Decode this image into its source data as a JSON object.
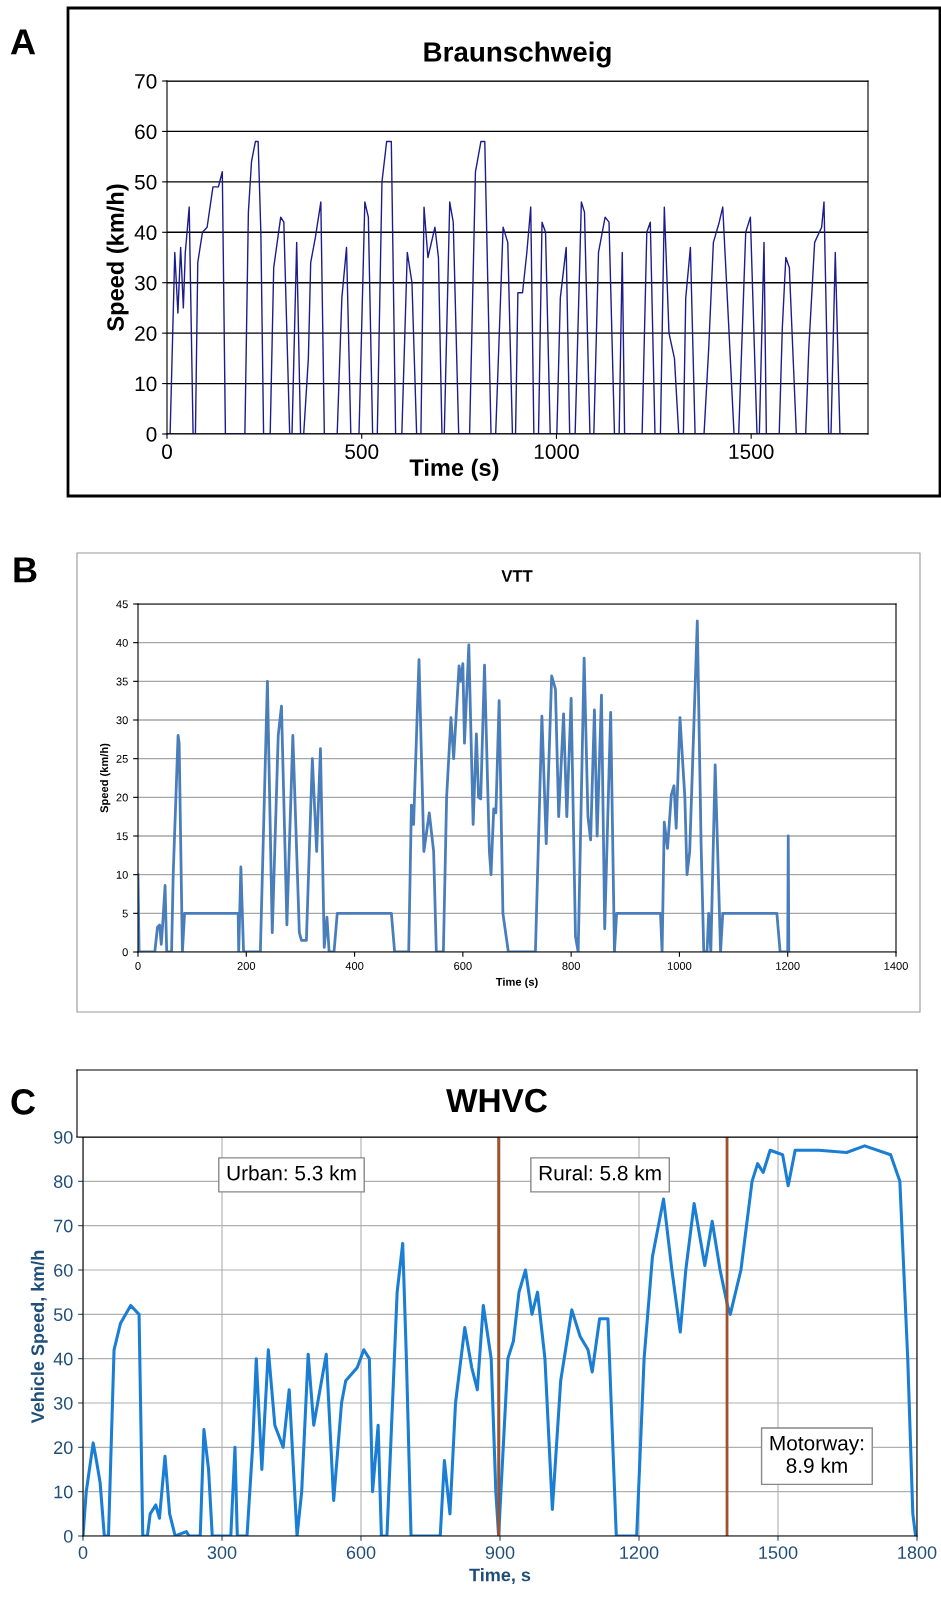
{
  "chart_data": [
    {
      "type": "line",
      "title": "Braunschweig",
      "xlabel": "Time (s)",
      "ylabel": "Speed (km/h)",
      "annotations": [
        "A"
      ],
      "xlim": [
        0,
        1800
      ],
      "xticks": [
        0,
        500,
        1000,
        1500
      ],
      "ylim": [
        0,
        70
      ],
      "yticks": [
        0,
        10,
        20,
        30,
        40,
        50,
        60,
        70
      ],
      "grid": "y",
      "legend": false,
      "x": [
        0,
        8,
        20,
        28,
        35,
        42,
        47,
        57,
        67,
        73,
        79,
        91,
        103,
        118,
        132,
        142,
        150,
        200,
        209,
        217,
        227,
        234,
        241,
        248,
        265,
        274,
        292,
        300,
        315,
        321,
        333,
        343,
        351,
        363,
        369,
        381,
        395,
        404,
        437,
        449,
        461,
        472,
        493,
        508,
        517,
        528,
        540,
        552,
        564,
        576,
        587,
        603,
        617,
        629,
        641,
        652,
        660,
        670,
        688,
        697,
        706,
        712,
        726,
        735,
        749,
        777,
        792,
        806,
        816,
        832,
        844,
        863,
        875,
        887,
        895,
        901,
        913,
        924,
        934,
        942,
        954,
        963,
        972,
        984,
        1001,
        1010,
        1025,
        1034,
        1048,
        1064,
        1072,
        1086,
        1096,
        1108,
        1125,
        1135,
        1149,
        1161,
        1169,
        1175,
        1220,
        1232,
        1241,
        1253,
        1267,
        1277,
        1289,
        1303,
        1314,
        1326,
        1332,
        1344,
        1356,
        1379,
        1391,
        1403,
        1418,
        1427,
        1442,
        1456,
        1468,
        1486,
        1498,
        1515,
        1521,
        1533,
        1539,
        1572,
        1580,
        1589,
        1598,
        1616,
        1640,
        1648,
        1663,
        1681,
        1687,
        1699,
        1705,
        1716,
        1728,
        1740
      ],
      "series": [
        {
          "color": "#1c1c8c",
          "values": [
            0,
            0,
            36,
            24,
            37,
            25,
            36,
            45,
            0,
            0,
            34,
            40,
            41,
            49,
            49,
            52,
            0,
            0,
            44,
            54,
            58,
            58,
            40,
            0,
            0,
            33,
            43,
            42,
            0,
            0,
            38,
            0,
            0,
            15,
            34,
            39,
            46,
            0,
            0,
            27,
            37,
            0,
            0,
            46,
            43,
            0,
            0,
            50,
            58,
            58,
            0,
            0,
            36,
            30,
            0,
            0,
            45,
            35,
            41,
            35,
            0,
            0,
            46,
            42,
            0,
            0,
            52,
            58,
            58,
            0,
            0,
            41,
            38,
            0,
            0,
            28,
            28,
            36,
            45,
            0,
            0,
            42,
            40,
            0,
            0,
            27,
            37,
            0,
            0,
            46,
            44,
            0,
            0,
            36,
            43,
            42,
            0,
            0,
            36,
            0,
            0,
            40,
            42,
            0,
            0,
            45,
            20,
            15,
            0,
            0,
            27,
            37,
            0,
            0,
            17,
            38,
            42,
            45,
            22,
            0,
            0,
            40,
            43,
            0,
            0,
            38,
            0,
            0,
            21,
            35,
            33,
            0,
            0,
            17,
            38,
            41,
            46,
            0,
            0,
            36,
            0,
            0
          ]
        }
      ]
    },
    {
      "type": "line",
      "title": "VTT",
      "xlabel": "Time (s)",
      "ylabel": "Speed (km/h)",
      "annotations": [
        "B"
      ],
      "xlim": [
        0,
        1400
      ],
      "xticks": [
        0,
        200,
        400,
        600,
        800,
        1000,
        1200,
        1400
      ],
      "ylim": [
        0,
        45
      ],
      "yticks": [
        0,
        5,
        10,
        15,
        20,
        25,
        30,
        35,
        40,
        45
      ],
      "grid": "y",
      "legend": false,
      "x": [
        0,
        2,
        31,
        36,
        40,
        43,
        46,
        50,
        53,
        62,
        65,
        70,
        74,
        76,
        82,
        86,
        185,
        186,
        190,
        195,
        226,
        239,
        248,
        259,
        265,
        275,
        286,
        298,
        302,
        311,
        322,
        330,
        337,
        344,
        349,
        353,
        362,
        368,
        468,
        474,
        500,
        505,
        509,
        519,
        528,
        538,
        546,
        551,
        564,
        570,
        578,
        583,
        593,
        596,
        600,
        603,
        611,
        619,
        625,
        629,
        633,
        640,
        649,
        652,
        657,
        661,
        667,
        674,
        684,
        734,
        746,
        754,
        764,
        771,
        777,
        786,
        792,
        800,
        808,
        813,
        824,
        831,
        836,
        843,
        848,
        856,
        862,
        873,
        880,
        884,
        965,
        968,
        972,
        978,
        985,
        990,
        994,
        1001,
        1010,
        1014,
        1019,
        1033,
        1040,
        1045,
        1051,
        1054,
        1058,
        1066,
        1076,
        1080,
        1180,
        1186,
        1200,
        1201,
        1202
      ],
      "series": [
        {
          "color": "#4a7ebb",
          "values": [
            10,
            0,
            0,
            3.2,
            3.5,
            1,
            4,
            8.6,
            0,
            0,
            10,
            20,
            28,
            27,
            0,
            5,
            5,
            0,
            11,
            0,
            0,
            35,
            2.5,
            28,
            31.8,
            3.5,
            28,
            2.5,
            1.5,
            1.5,
            25,
            13,
            26.3,
            0.6,
            4.5,
            0,
            0,
            5,
            5,
            0,
            0,
            19,
            16.5,
            37.8,
            13,
            18,
            13,
            0,
            0,
            20,
            30.3,
            25,
            37,
            35,
            37.3,
            27,
            39.7,
            16.5,
            28.2,
            20,
            19.8,
            37.1,
            13,
            10,
            18.5,
            18,
            32.5,
            5,
            0,
            0,
            30.5,
            14,
            35.7,
            34,
            17.5,
            30.8,
            17.5,
            32.8,
            2,
            0,
            38,
            17.5,
            14.5,
            31.3,
            15,
            33.2,
            3,
            31,
            0,
            5,
            5,
            0,
            16.8,
            13.4,
            20.3,
            21.5,
            16,
            30.3,
            20,
            10,
            13,
            42.8,
            14,
            0,
            0,
            5,
            0,
            24.2,
            0,
            5,
            5,
            0,
            0,
            15,
            0
          ]
        }
      ]
    },
    {
      "type": "line",
      "title": "WHVC",
      "xlabel": "Time, s",
      "ylabel": "Vehicle Speed, km/h",
      "annotations": [
        "C",
        "Urban: 5.3 km",
        "Rural: 5.8 km",
        "Motorway:\n8.9 km"
      ],
      "xlim": [
        0,
        1800
      ],
      "xticks": [
        0,
        300,
        600,
        900,
        1200,
        1500,
        1800
      ],
      "ylim": [
        0,
        90
      ],
      "yticks": [
        0,
        10,
        20,
        30,
        40,
        50,
        60,
        70,
        80,
        90
      ],
      "grid": true,
      "legend": false,
      "ref_lines": [
        {
          "axis": "x",
          "value": 897,
          "color": "#a0522d"
        },
        {
          "axis": "x",
          "value": 1390,
          "color": "#a0522d"
        }
      ],
      "x": [
        0,
        7,
        22,
        29,
        37,
        46,
        55,
        67,
        81,
        103,
        121,
        129,
        139,
        145,
        157,
        165,
        177,
        187,
        199,
        223,
        229,
        253,
        261,
        271,
        279,
        319,
        328,
        333,
        354,
        366,
        374,
        386,
        400,
        414,
        432,
        445,
        462,
        472,
        486,
        498,
        525,
        541,
        558,
        567,
        592,
        606,
        618,
        625,
        637,
        644,
        656,
        668,
        678,
        690,
        698,
        708,
        771,
        780,
        792,
        804,
        824,
        839,
        851,
        864,
        881,
        891,
        897,
        917,
        929,
        941,
        955,
        969,
        981,
        997,
        1013,
        1031,
        1055,
        1073,
        1090,
        1099,
        1115,
        1133,
        1151,
        1195,
        1211,
        1229,
        1253,
        1271,
        1289,
        1301,
        1319,
        1342,
        1358,
        1375,
        1391,
        1397,
        1420,
        1444,
        1456,
        1468,
        1483,
        1510,
        1522,
        1537,
        1588,
        1648,
        1687,
        1743,
        1763,
        1780,
        1791,
        1797
      ],
      "series": [
        {
          "color": "#1a7fd4",
          "values": [
            0,
            10,
            21,
            17,
            12,
            0,
            0,
            42,
            48,
            52,
            50,
            0,
            0,
            5,
            7,
            4,
            18,
            5,
            0,
            1,
            0,
            0,
            24,
            15,
            0,
            0,
            20,
            0,
            0,
            20,
            40,
            15,
            42,
            25,
            20,
            33,
            0,
            10,
            41,
            25,
            41,
            8,
            30,
            35,
            38,
            42,
            40,
            10,
            25,
            0,
            0,
            30,
            55,
            66,
            40,
            0,
            0,
            17,
            5,
            30,
            47,
            38,
            33,
            52,
            40,
            10,
            0,
            40,
            44,
            55,
            60,
            50,
            55,
            40,
            6,
            35,
            51,
            45,
            42,
            37,
            49,
            49,
            0,
            0,
            40,
            63,
            76,
            60,
            46,
            60,
            75,
            61,
            71,
            60,
            52,
            50,
            60,
            80,
            84,
            82,
            87,
            86,
            79,
            87,
            87,
            86.5,
            88,
            86,
            80,
            40,
            5,
            0
          ]
        }
      ]
    }
  ]
}
